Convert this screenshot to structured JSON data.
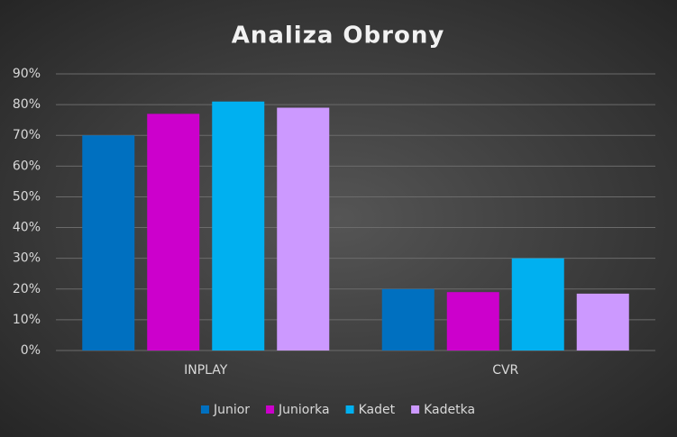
{
  "chart_data": {
    "type": "bar",
    "title": "Analiza Obrony",
    "categories": [
      "INPLAY",
      "CVR"
    ],
    "series": [
      {
        "name": "Junior",
        "color": "#0070c0",
        "values": [
          70,
          20
        ]
      },
      {
        "name": "Juniorka",
        "color": "#cc00cc",
        "values": [
          77,
          19
        ]
      },
      {
        "name": "Kadet",
        "color": "#00b0f0",
        "values": [
          81,
          30
        ]
      },
      {
        "name": "Kadetka",
        "color": "#cc99ff",
        "values": [
          79,
          18.5
        ]
      }
    ],
    "ylim": [
      0,
      90
    ],
    "yticks": [
      {
        "value": 0,
        "label": "0%"
      },
      {
        "value": 10,
        "label": "10%"
      },
      {
        "value": 20,
        "label": "20%"
      },
      {
        "value": 30,
        "label": "30%"
      },
      {
        "value": 40,
        "label": "40%"
      },
      {
        "value": 50,
        "label": "50%"
      },
      {
        "value": 60,
        "label": "60%"
      },
      {
        "value": 70,
        "label": "70%"
      },
      {
        "value": 80,
        "label": "80%"
      },
      {
        "value": 90,
        "label": "90%"
      }
    ],
    "grid": true,
    "legend": "bottom"
  }
}
